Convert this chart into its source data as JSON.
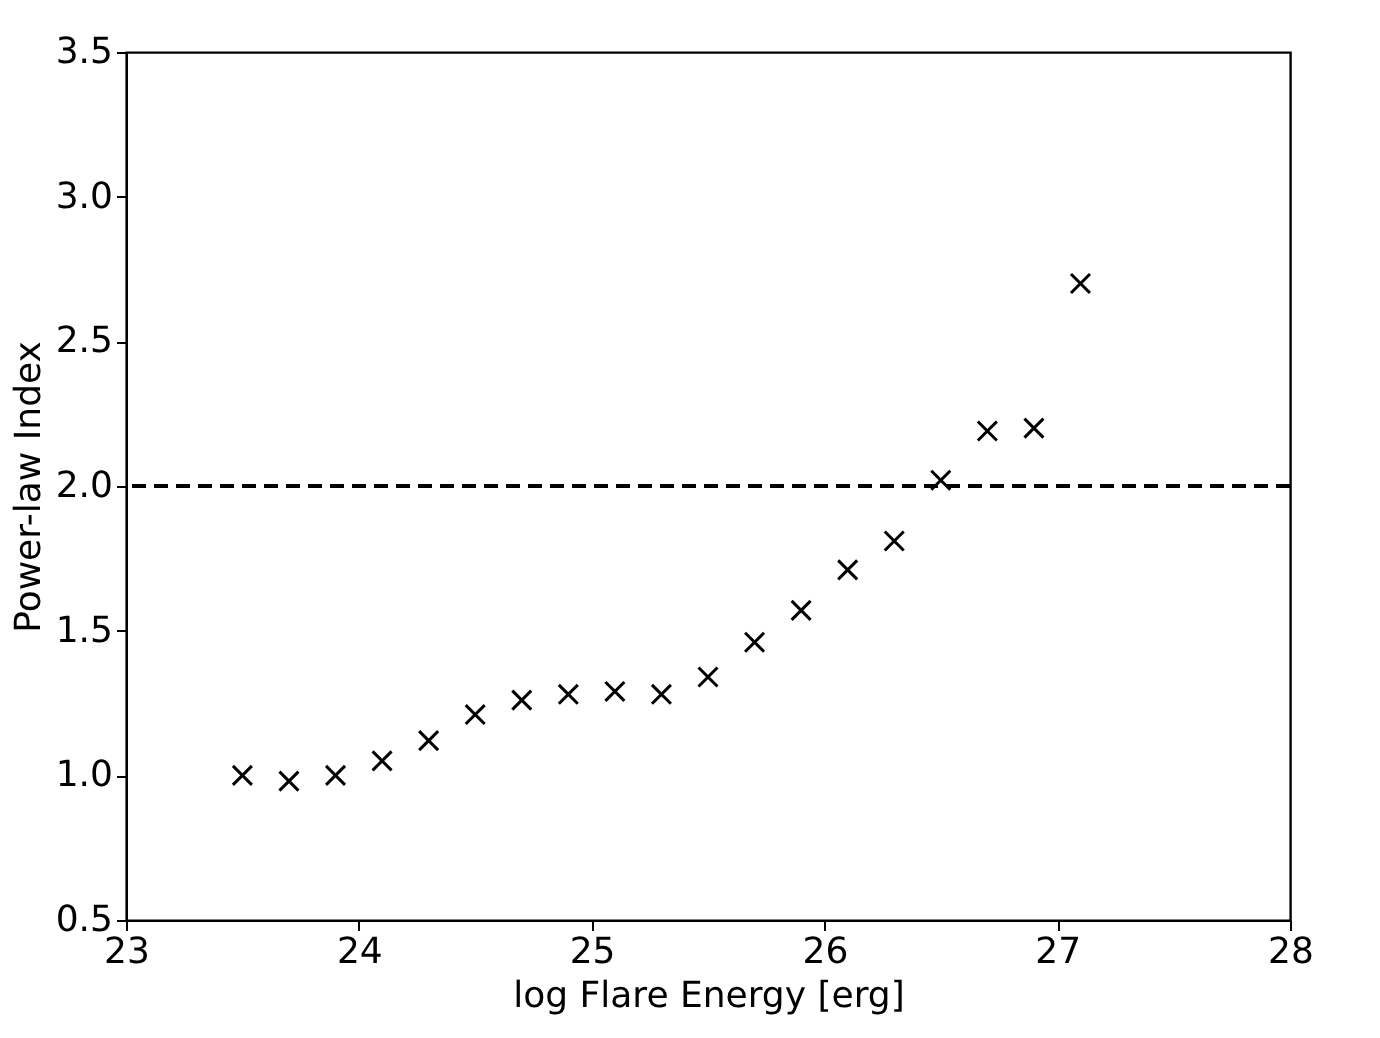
{
  "chart_data": {
    "type": "scatter",
    "xlabel": "log Flare Energy [erg]",
    "ylabel": "Power-law Index",
    "x": [
      23.5,
      23.7,
      23.9,
      24.1,
      24.3,
      24.5,
      24.7,
      24.9,
      25.1,
      25.3,
      25.5,
      25.7,
      25.9,
      26.1,
      26.3,
      26.5,
      26.7,
      26.9,
      27.1
    ],
    "series": [
      {
        "color": "#000000",
        "values": [
          1.0,
          0.98,
          1.0,
          1.05,
          1.12,
          1.21,
          1.26,
          1.28,
          1.29,
          1.28,
          1.34,
          1.46,
          1.57,
          1.71,
          1.81,
          2.02,
          2.19,
          2.2,
          2.7
        ]
      }
    ],
    "marker": "cross",
    "xlim": [
      23,
      28
    ],
    "xticks": [
      23,
      24,
      25,
      26,
      27,
      28
    ],
    "ylim": [
      0.5,
      3.5
    ],
    "yticks": [
      {
        "value": 0.5,
        "label": "0.5"
      },
      {
        "value": 1.0,
        "label": "1.0"
      },
      {
        "value": 1.5,
        "label": "1.5"
      },
      {
        "value": 2.0,
        "label": "2.0"
      },
      {
        "value": 2.5,
        "label": "2.5"
      },
      {
        "value": 3.0,
        "label": "3.0"
      },
      {
        "value": 3.5,
        "label": "3.5"
      }
    ],
    "ref_lines": [
      {
        "axis": "y",
        "value": 2.0,
        "color": "#000000",
        "line_style": "dashed"
      }
    ],
    "grid": false
  }
}
